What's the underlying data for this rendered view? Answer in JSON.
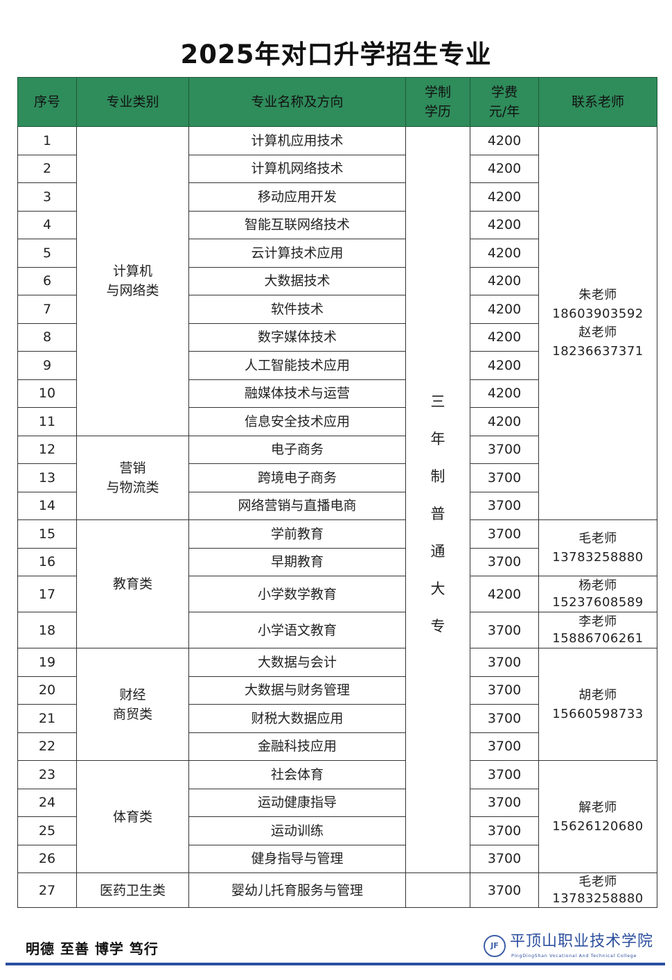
{
  "title": "2025年对口升学招生专业",
  "headers": {
    "no": "序号",
    "category": "专业类别",
    "major": "专业名称及方向",
    "system_line1": "学制",
    "system_line2": "学历",
    "fee_line1": "学费",
    "fee_line2": "元/年",
    "contact": "联系老师"
  },
  "system_text": [
    "三",
    "年",
    "制",
    "普",
    "通",
    "大",
    "专"
  ],
  "rows": [
    {
      "no": "1",
      "major": "计算机应用技术",
      "fee": "4200"
    },
    {
      "no": "2",
      "major": "计算机网络技术",
      "fee": "4200"
    },
    {
      "no": "3",
      "major": "移动应用开发",
      "fee": "4200"
    },
    {
      "no": "4",
      "major": "智能互联网络技术",
      "fee": "4200"
    },
    {
      "no": "5",
      "major": "云计算技术应用",
      "fee": "4200"
    },
    {
      "no": "6",
      "major": "大数据技术",
      "fee": "4200"
    },
    {
      "no": "7",
      "major": "软件技术",
      "fee": "4200"
    },
    {
      "no": "8",
      "major": "数字媒体技术",
      "fee": "4200"
    },
    {
      "no": "9",
      "major": "人工智能技术应用",
      "fee": "4200"
    },
    {
      "no": "10",
      "major": "融媒体技术与运营",
      "fee": "4200"
    },
    {
      "no": "11",
      "major": "信息安全技术应用",
      "fee": "4200"
    },
    {
      "no": "12",
      "major": "电子商务",
      "fee": "3700"
    },
    {
      "no": "13",
      "major": "跨境电子商务",
      "fee": "3700"
    },
    {
      "no": "14",
      "major": "网络营销与直播电商",
      "fee": "3700"
    },
    {
      "no": "15",
      "major": "学前教育",
      "fee": "3700"
    },
    {
      "no": "16",
      "major": "早期教育",
      "fee": "3700"
    },
    {
      "no": "17",
      "major": "小学数学教育",
      "fee": "4200"
    },
    {
      "no": "18",
      "major": "小学语文教育",
      "fee": "3700"
    },
    {
      "no": "19",
      "major": "大数据与会计",
      "fee": "3700"
    },
    {
      "no": "20",
      "major": "大数据与财务管理",
      "fee": "3700"
    },
    {
      "no": "21",
      "major": "财税大数据应用",
      "fee": "3700"
    },
    {
      "no": "22",
      "major": "金融科技应用",
      "fee": "3700"
    },
    {
      "no": "23",
      "major": "社会体育",
      "fee": "3700"
    },
    {
      "no": "24",
      "major": "运动健康指导",
      "fee": "3700"
    },
    {
      "no": "25",
      "major": "运动训练",
      "fee": "3700"
    },
    {
      "no": "26",
      "major": "健身指导与管理",
      "fee": "3700"
    },
    {
      "no": "27",
      "major": "婴幼儿托育服务与管理",
      "fee": "3700"
    }
  ],
  "categories": [
    {
      "start": 1,
      "span": 11,
      "lines": [
        "计算机",
        "与网络类"
      ]
    },
    {
      "start": 12,
      "span": 3,
      "lines": [
        "营销",
        "与物流类"
      ]
    },
    {
      "start": 15,
      "span": 4,
      "lines": [
        "教育类"
      ]
    },
    {
      "start": 19,
      "span": 4,
      "lines": [
        "财经",
        "商贸类"
      ]
    },
    {
      "start": 23,
      "span": 4,
      "lines": [
        "体育类"
      ]
    },
    {
      "start": 27,
      "span": 1,
      "lines": [
        "医药卫生类"
      ]
    }
  ],
  "contacts": [
    {
      "start": 1,
      "span": 14,
      "lines": [
        "朱老师",
        "18603903592",
        "赵老师",
        "18236637371"
      ]
    },
    {
      "start": 15,
      "span": 2,
      "lines": [
        "毛老师",
        "13783258880"
      ]
    },
    {
      "start": 17,
      "span": 1,
      "lines": [
        "杨老师",
        "15237608589"
      ]
    },
    {
      "start": 18,
      "span": 1,
      "lines": [
        "李老师",
        "15886706261"
      ]
    },
    {
      "start": 19,
      "span": 4,
      "lines": [
        "胡老师",
        "15660598733"
      ]
    },
    {
      "start": 23,
      "span": 4,
      "lines": [
        "解老师",
        "15626120680"
      ]
    },
    {
      "start": 27,
      "span": 1,
      "lines": [
        "毛老师",
        "13783258880"
      ]
    }
  ],
  "footer": {
    "motto": "明德 至善 博学 笃行",
    "logo_cn": "平顶山职业技术学院",
    "logo_en": "PingDingShan Vocational And Technical College"
  },
  "colors": {
    "header_bg": "#2f8c5b",
    "footer_line": "#2b4ea0",
    "logo": "#2c4f9e"
  }
}
